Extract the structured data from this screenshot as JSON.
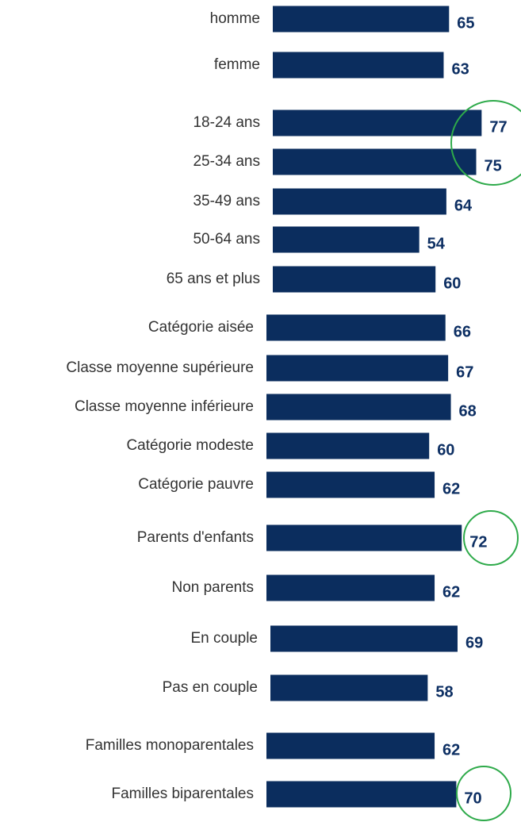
{
  "chart_data": {
    "type": "bar",
    "orientation": "horizontal",
    "color": "#0b2d5e",
    "categories": [
      "homme",
      "femme",
      "18-24 ans",
      "25-34 ans",
      "35-49 ans",
      "50-64 ans",
      "65 ans et plus",
      "Catégorie aisée",
      "Classe moyenne supérieure",
      "Classe moyenne inférieure",
      "Catégorie modeste",
      "Catégorie pauvre",
      "Parents d'enfants",
      "Non parents",
      "En couple",
      "Pas en couple",
      "Familles monoparentales",
      "Familles biparentales"
    ],
    "values": [
      65,
      63,
      77,
      75,
      64,
      54,
      60,
      66,
      67,
      68,
      60,
      62,
      72,
      62,
      69,
      58,
      62,
      70
    ]
  }
}
